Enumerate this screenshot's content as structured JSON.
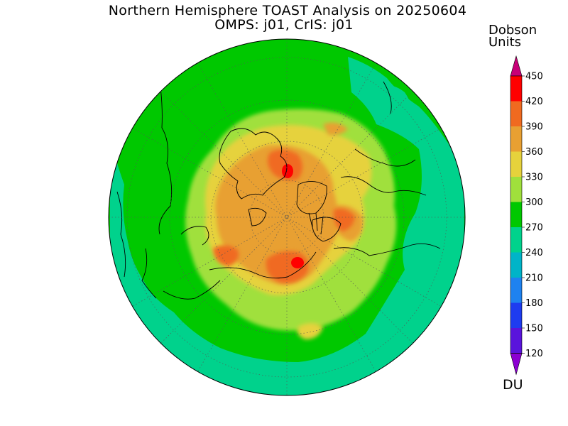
{
  "title": {
    "line1": "Northern Hemisphere TOAST Analysis on 20250604",
    "line2": "OMPS: j01, CrIS: j01"
  },
  "colorbar": {
    "units_line1": "Dobson",
    "units_line2": "Units",
    "bottom_label": "DU",
    "ticks": [
      "450",
      "420",
      "390",
      "360",
      "330",
      "300",
      "270",
      "240",
      "210",
      "180",
      "150",
      "120"
    ],
    "colors": [
      "#ff0000",
      "#f06a20",
      "#e8a032",
      "#e6d23c",
      "#a0e03c",
      "#00c800",
      "#00d28c",
      "#00b4c8",
      "#1e82f0",
      "#1e3cf0",
      "#5a14dc",
      "#8c00d2"
    ],
    "top_arrow_color": "#c80078",
    "bottom_arrow_color": "#8c00d2"
  },
  "map": {
    "projection": "north-polar-stereographic",
    "ocean_ring_color": "#00d28c",
    "background_color": "#00c800",
    "gridlines": "dotted"
  }
}
